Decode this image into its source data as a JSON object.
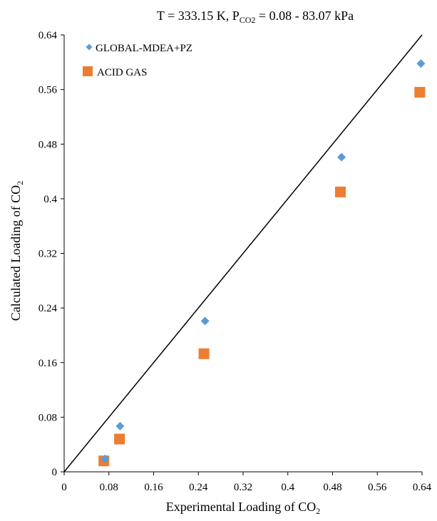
{
  "chart_data": {
    "type": "scatter",
    "title": {
      "main": "T = 333.15  K,  P",
      "sub": "CO2",
      "tail": " = 0.08  - 83.07  kPa"
    },
    "xlabel": {
      "main": "Experimental  Loading of CO",
      "sub": "2"
    },
    "ylabel": {
      "main": "Calculated Loading of CO",
      "sub": "2"
    },
    "xlim": [
      0,
      0.64
    ],
    "ylim": [
      0,
      0.64
    ],
    "xticks": [
      "0",
      "0.08",
      "0.16",
      "0.24",
      "0.32",
      "0.4",
      "0.48",
      "0.56",
      "0.64"
    ],
    "yticks": [
      "0",
      "0.08",
      "0.16",
      "0.24",
      "0.32",
      "0.4",
      "0.48",
      "0.56",
      "0.64"
    ],
    "grid": false,
    "legend_position": "top-left",
    "parity_line": {
      "x": [
        0,
        0.64
      ],
      "y": [
        0,
        0.64
      ]
    },
    "series": [
      {
        "name": "GLOBAL-MDEA+PZ",
        "marker": "diamond",
        "color": "#5B9BD5",
        "x": [
          0.073,
          0.1,
          0.252,
          0.496,
          0.638
        ],
        "y": [
          0.019,
          0.067,
          0.221,
          0.461,
          0.598
        ]
      },
      {
        "name": "ACID GAS",
        "marker": "square",
        "color": "#ED7D31",
        "x": [
          0.071,
          0.099,
          0.25,
          0.494,
          0.636
        ],
        "y": [
          0.016,
          0.048,
          0.173,
          0.41,
          0.556
        ]
      }
    ]
  }
}
